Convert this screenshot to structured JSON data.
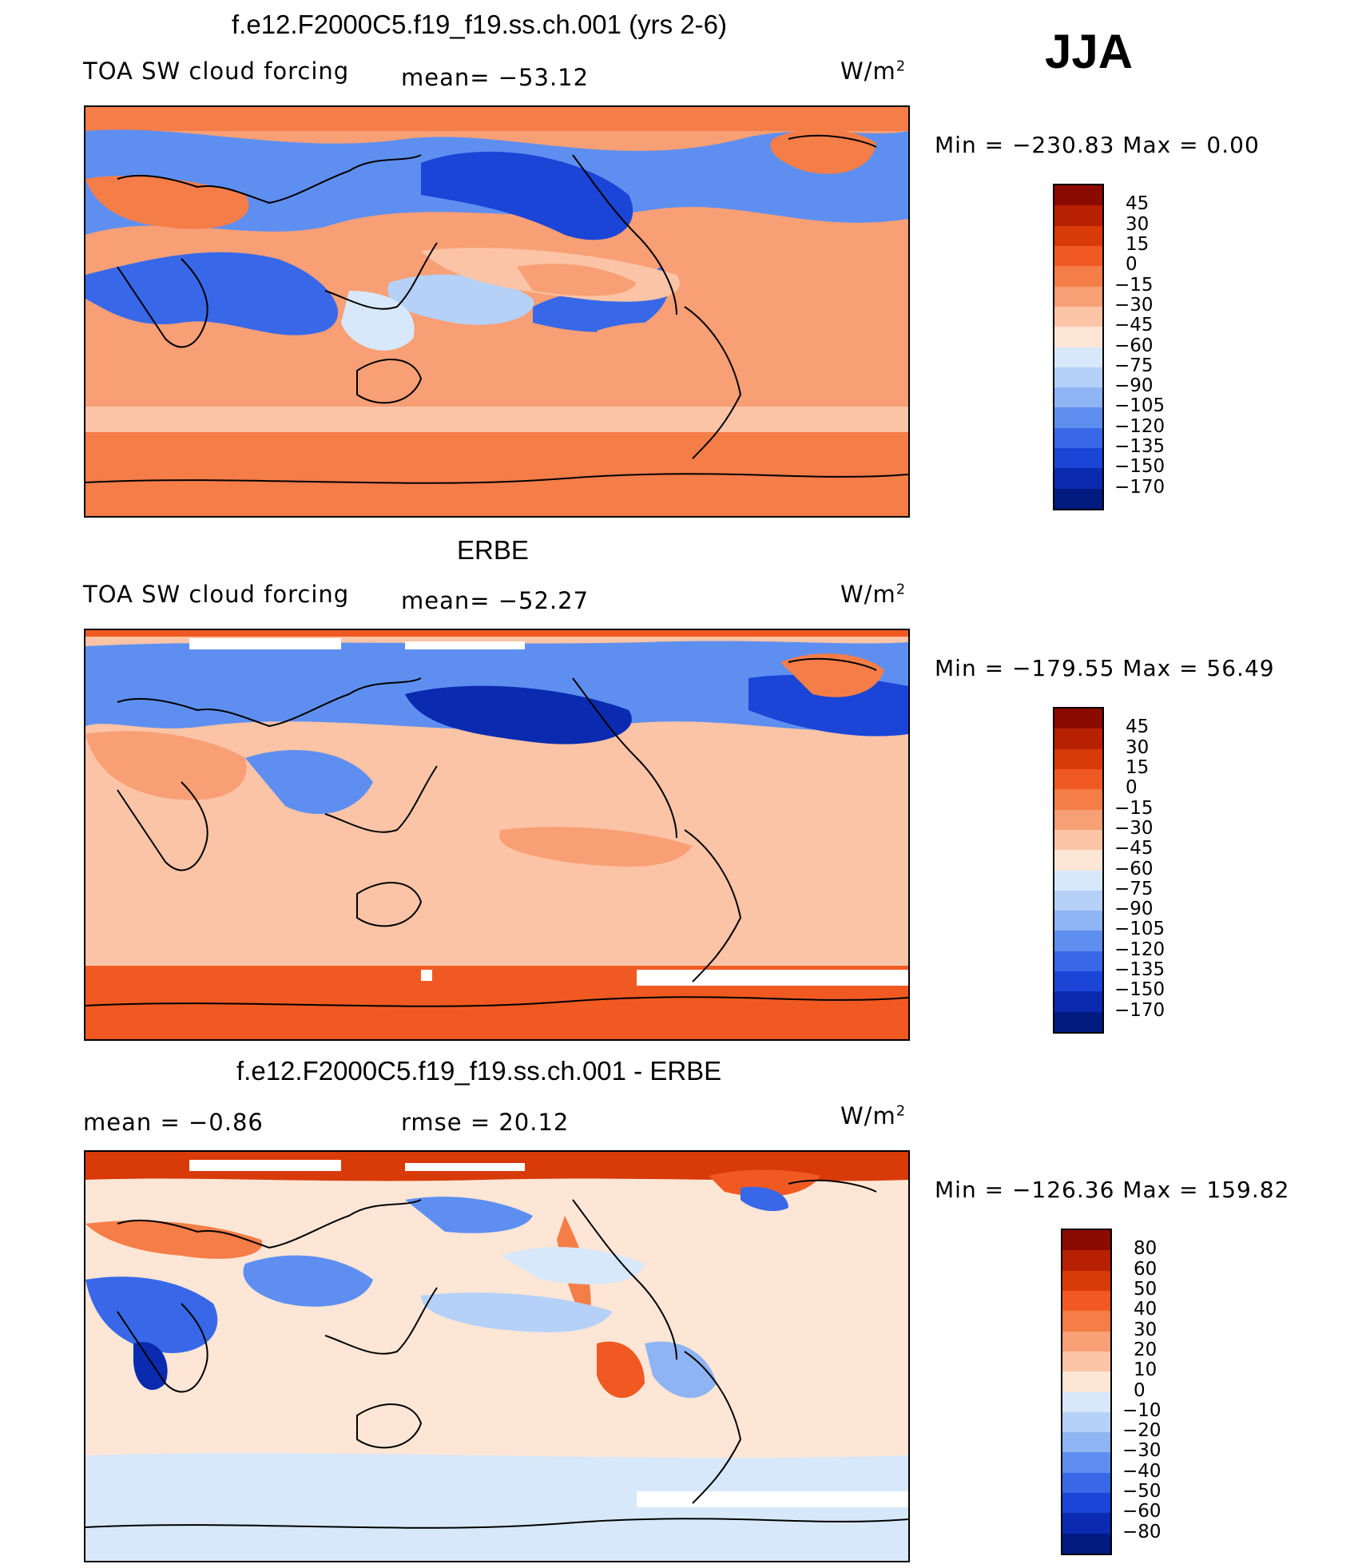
{
  "season": "JJA",
  "panels": [
    {
      "title": "f.e12.F2000C5.f19_f19.ss.ch.001 (yrs 2-6)",
      "left_label": "TOA SW cloud forcing",
      "center_label": "mean= −53.12",
      "units": "W/m",
      "units_sup": "2",
      "minmax": "Min  =  −230.83  Max  =     0.00",
      "colorbar": {
        "labels": [
          "45",
          "30",
          "15",
          "0",
          "−15",
          "−30",
          "−45",
          "−60",
          "−75",
          "−90",
          "−105",
          "−120",
          "−135",
          "−150",
          "−170"
        ],
        "colors": [
          "#8b0a00",
          "#b72000",
          "#d83a08",
          "#f05a22",
          "#f57d48",
          "#f89f76",
          "#fbc4a6",
          "#fde6d6",
          "#d7e8fb",
          "#b6d1f8",
          "#8fb4f3",
          "#5e8ff0",
          "#3868e8",
          "#1a45d6",
          "#0a2bb0",
          "#001a80"
        ]
      }
    },
    {
      "title": "ERBE",
      "left_label": "TOA SW cloud forcing",
      "center_label": "mean= −52.27",
      "units": "W/m",
      "units_sup": "2",
      "minmax": "Min  =  −179.55  Max  =    56.49",
      "colorbar": {
        "labels": [
          "45",
          "30",
          "15",
          "0",
          "−15",
          "−30",
          "−45",
          "−60",
          "−75",
          "−90",
          "−105",
          "−120",
          "−135",
          "−150",
          "−170"
        ],
        "colors": [
          "#8b0a00",
          "#b72000",
          "#d83a08",
          "#f05a22",
          "#f57d48",
          "#f89f76",
          "#fbc4a6",
          "#fde6d6",
          "#d7e8fb",
          "#b6d1f8",
          "#8fb4f3",
          "#5e8ff0",
          "#3868e8",
          "#1a45d6",
          "#0a2bb0",
          "#001a80"
        ]
      }
    },
    {
      "title": "f.e12.F2000C5.f19_f19.ss.ch.001 - ERBE",
      "left_label": "mean =    −0.86",
      "center_label": "rmse =    20.12",
      "units": "W/m",
      "units_sup": "2",
      "minmax": "Min  =  −126.36  Max  =  159.82",
      "colorbar": {
        "labels": [
          "80",
          "60",
          "50",
          "40",
          "30",
          "20",
          "10",
          "0",
          "−10",
          "−20",
          "−30",
          "−40",
          "−50",
          "−60",
          "−80"
        ],
        "colors": [
          "#8b0a00",
          "#b72000",
          "#d83a08",
          "#f05a22",
          "#f57d48",
          "#f89f76",
          "#fbc4a6",
          "#fde6d6",
          "#d7e8fb",
          "#b6d1f8",
          "#8fb4f3",
          "#5e8ff0",
          "#3868e8",
          "#1a45d6",
          "#0a2bb0",
          "#001a80"
        ]
      }
    }
  ]
}
